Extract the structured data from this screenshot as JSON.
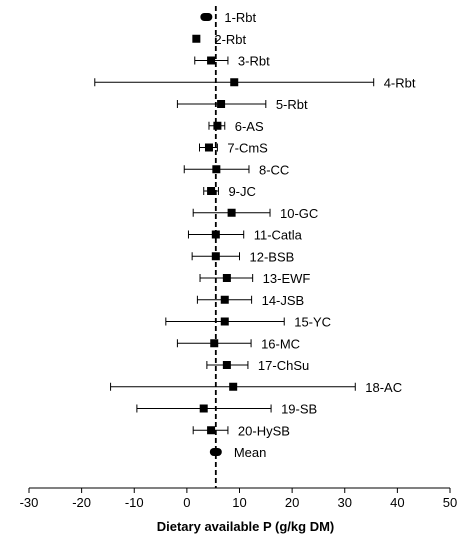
{
  "chart_data": {
    "type": "forest",
    "xlabel": "Dietary available P (g/kg DM)",
    "xlim": [
      -30,
      50
    ],
    "xticks": [
      -30,
      -20,
      -10,
      0,
      10,
      20,
      30,
      40,
      50
    ],
    "reference_line": 5.5,
    "grid": false,
    "legend": "none",
    "points": [
      {
        "label": "1-Rbt",
        "value": 3.7,
        "low": 3.7,
        "high": 3.7,
        "marker": "oval"
      },
      {
        "label": "2-Rbt",
        "value": 1.8,
        "low": 1.8,
        "high": 1.8,
        "marker": "square"
      },
      {
        "label": "3-Rbt",
        "value": 4.6,
        "low": 1.5,
        "high": 7.8,
        "marker": "square"
      },
      {
        "label": "4-Rbt",
        "value": 9.0,
        "low": -17.5,
        "high": 35.5,
        "marker": "square"
      },
      {
        "label": "5-Rbt",
        "value": 6.5,
        "low": -1.8,
        "high": 15.0,
        "marker": "square"
      },
      {
        "label": "6-AS",
        "value": 5.8,
        "low": 4.2,
        "high": 7.2,
        "marker": "square"
      },
      {
        "label": "7-CmS",
        "value": 4.2,
        "low": 2.4,
        "high": 5.8,
        "marker": "square"
      },
      {
        "label": "8-CC",
        "value": 5.6,
        "low": -0.5,
        "high": 11.8,
        "marker": "square"
      },
      {
        "label": "9-JC",
        "value": 4.6,
        "low": 3.2,
        "high": 6.0,
        "marker": "square"
      },
      {
        "label": "10-GC",
        "value": 8.5,
        "low": 1.2,
        "high": 15.8,
        "marker": "square"
      },
      {
        "label": "11-Catla",
        "value": 5.5,
        "low": 0.3,
        "high": 10.8,
        "marker": "square"
      },
      {
        "label": "12-BSB",
        "value": 5.5,
        "low": 1.0,
        "high": 10.0,
        "marker": "square"
      },
      {
        "label": "13-EWF",
        "value": 7.6,
        "low": 2.5,
        "high": 12.5,
        "marker": "square"
      },
      {
        "label": "14-JSB",
        "value": 7.2,
        "low": 2.0,
        "high": 12.3,
        "marker": "square"
      },
      {
        "label": "15-YC",
        "value": 7.2,
        "low": -4.0,
        "high": 18.5,
        "marker": "square"
      },
      {
        "label": "16-MC",
        "value": 5.2,
        "low": -1.8,
        "high": 12.2,
        "marker": "square"
      },
      {
        "label": "17-ChSu",
        "value": 7.6,
        "low": 3.8,
        "high": 11.6,
        "marker": "square"
      },
      {
        "label": "18-AC",
        "value": 8.8,
        "low": -14.5,
        "high": 32.0,
        "marker": "square"
      },
      {
        "label": "19-SB",
        "value": 3.2,
        "low": -9.5,
        "high": 16.0,
        "marker": "square"
      },
      {
        "label": "20-HySB",
        "value": 4.6,
        "low": 1.2,
        "high": 7.8,
        "marker": "square"
      },
      {
        "label": "Mean",
        "value": 5.5,
        "low": 5.5,
        "high": 5.5,
        "marker": "oval"
      }
    ]
  }
}
